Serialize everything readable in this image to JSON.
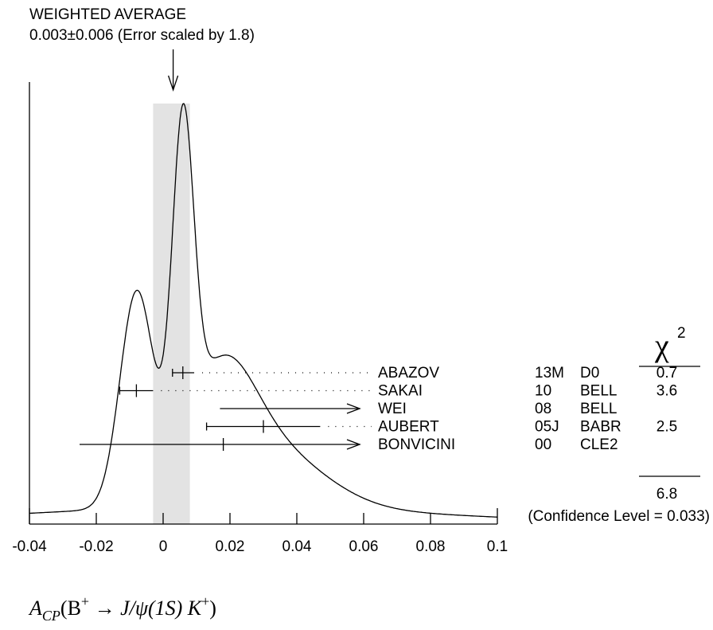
{
  "chart_data": {
    "type": "ideogram",
    "title_line1": "WEIGHTED AVERAGE",
    "title_line2": "0.003±0.006 (Error scaled by 1.8)",
    "average": {
      "value": 0.003,
      "error": 0.006,
      "scale_factor": 1.8,
      "band": [
        -0.003,
        0.008
      ]
    },
    "xlim": [
      -0.04,
      0.1
    ],
    "x_ticks": [
      -0.04,
      -0.02,
      0,
      0.02,
      0.04,
      0.06,
      0.08,
      0.1
    ],
    "x_tick_labels": [
      "-0.04",
      "-0.02",
      "0",
      "0.02",
      "0.04",
      "0.06",
      "0.08",
      "0.1"
    ],
    "xlabel": {
      "prefix": "A",
      "sub": "CP",
      "open": "(B",
      "sup": "+",
      "arrow": " → ",
      "mid": "J/ψ(1S) K",
      "sup2": "+",
      "close": ")"
    },
    "chi2_header": {
      "symbol": "χ",
      "power": "2"
    },
    "measurements": [
      {
        "author": "ABAZOV",
        "year": "13M",
        "experiment": "D0",
        "value": 0.0059,
        "lo": 0.0028,
        "hi": 0.0093,
        "arrow": false,
        "chi2": "0.7"
      },
      {
        "author": "SAKAI",
        "year": "10",
        "experiment": "BELL",
        "value": -0.008,
        "lo": -0.013,
        "hi": -0.003,
        "arrow": false,
        "chi2": "3.6"
      },
      {
        "author": "WEI",
        "year": "08",
        "experiment": "BELL",
        "value": null,
        "lo": 0.017,
        "hi": 0.1,
        "arrow": true,
        "chi2": ""
      },
      {
        "author": "AUBERT",
        "year": "05J",
        "experiment": "BABR",
        "value": 0.03,
        "lo": 0.013,
        "hi": 0.047,
        "arrow": false,
        "chi2": "2.5"
      },
      {
        "author": "BONVICINI",
        "year": "00",
        "experiment": "CLE2",
        "value": 0.018,
        "lo": -0.025,
        "hi": 0.1,
        "arrow": true,
        "chi2": ""
      }
    ],
    "chi2_total": "6.8",
    "confidence_level": "(Confidence Level = 0.033)"
  }
}
